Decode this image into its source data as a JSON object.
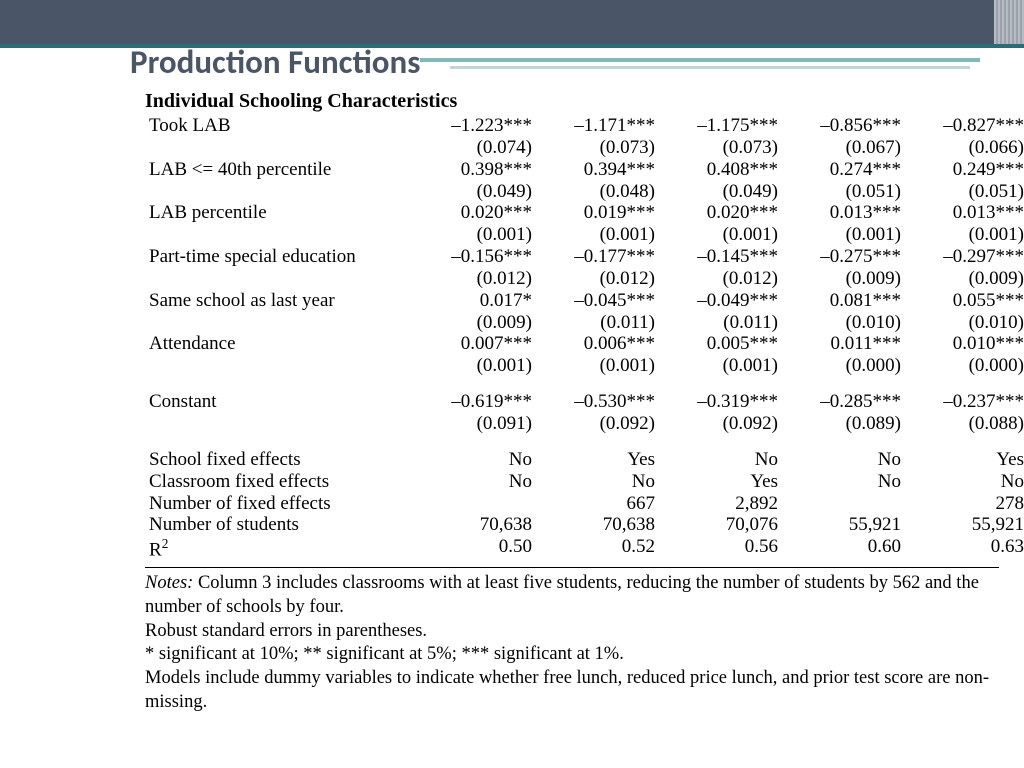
{
  "slide": {
    "title": "Production Functions",
    "colors": {
      "header_bar": "#4a5568",
      "accent1": "#2a6c78",
      "accent2": "#7fbab8",
      "accent3": "#bcd7d6",
      "title_color": "#4a5568"
    }
  },
  "table": {
    "section_title": "Individual Schooling Characteristics",
    "coef_rows": [
      {
        "label": "Took LAB",
        "est": [
          "–1.223***",
          "–1.171***",
          "–1.175***",
          "–0.856***",
          "–0.827***"
        ],
        "se": [
          "(0.074)",
          "(0.073)",
          "(0.073)",
          "(0.067)",
          "(0.066)"
        ]
      },
      {
        "label": "LAB <= 40th percentile",
        "est": [
          "0.398***",
          "0.394***",
          "0.408***",
          "0.274***",
          "0.249***"
        ],
        "se": [
          "(0.049)",
          "(0.048)",
          "(0.049)",
          "(0.051)",
          "(0.051)"
        ]
      },
      {
        "label": "LAB percentile",
        "est": [
          "0.020***",
          "0.019***",
          "0.020***",
          "0.013***",
          "0.013***"
        ],
        "se": [
          "(0.001)",
          "(0.001)",
          "(0.001)",
          "(0.001)",
          "(0.001)"
        ]
      },
      {
        "label": "Part-time special education",
        "est": [
          "–0.156***",
          "–0.177***",
          "–0.145***",
          "–0.275***",
          "–0.297***"
        ],
        "se": [
          "(0.012)",
          "(0.012)",
          "(0.012)",
          "(0.009)",
          "(0.009)"
        ]
      },
      {
        "label": "Same school as last year",
        "est": [
          "0.017*",
          "–0.045***",
          "–0.049***",
          "0.081***",
          "0.055***"
        ],
        "se": [
          "(0.009)",
          "(0.011)",
          "(0.011)",
          "(0.010)",
          "(0.010)"
        ]
      },
      {
        "label": "Attendance",
        "est": [
          "0.007***",
          "0.006***",
          "0.005***",
          "0.011***",
          "0.010***"
        ],
        "se": [
          "(0.001)",
          "(0.001)",
          "(0.001)",
          "(0.000)",
          "(0.000)"
        ]
      }
    ],
    "constant": {
      "label": "Constant",
      "est": [
        "–0.619***",
        "–0.530***",
        "–0.319***",
        "–0.285***",
        "–0.237***"
      ],
      "se": [
        "(0.091)",
        "(0.092)",
        "(0.092)",
        "(0.089)",
        "(0.088)"
      ]
    },
    "footer_rows": [
      {
        "label": "School fixed effects",
        "vals": [
          "No",
          "Yes",
          "No",
          "No",
          "Yes"
        ]
      },
      {
        "label": "Classroom fixed effects",
        "vals": [
          "No",
          "No",
          "Yes",
          "No",
          "No"
        ]
      },
      {
        "label": "Number of fixed effects",
        "vals": [
          "",
          "667",
          "2,892",
          "",
          "278"
        ]
      },
      {
        "label": "Number of students",
        "vals": [
          "70,638",
          "70,638",
          "70,076",
          "55,921",
          "55,921"
        ]
      },
      {
        "label": "R²",
        "vals": [
          "0.50",
          "0.52",
          "0.56",
          "0.60",
          "0.63"
        ]
      }
    ]
  },
  "notes": {
    "heading": "Notes:",
    "lines": [
      "Column 3 includes classrooms with at least five students, reducing the number of students by 562 and the number of schools by four.",
      "Robust standard errors in parentheses.",
      "* significant at 10%; ** significant at 5%; *** significant at 1%.",
      "Models include dummy variables to indicate whether free lunch, reduced price lunch, and prior test score are non-missing."
    ]
  }
}
